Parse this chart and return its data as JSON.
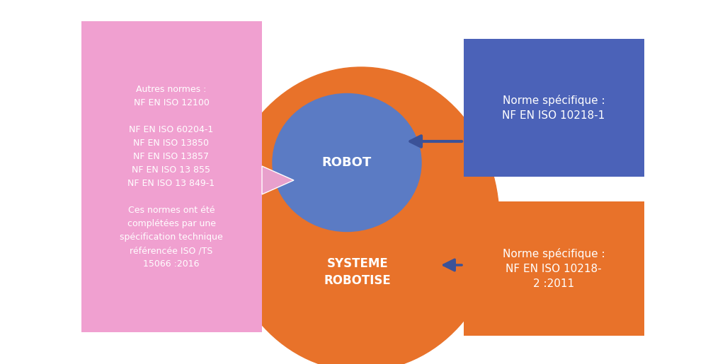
{
  "background_color": "#ffffff",
  "orange_color": "#E8722A",
  "blue_circle_color": "#5B7BC4",
  "pink_box_color": "#F0A0D0",
  "blue_box_color": "#4B62B8",
  "orange_box_color": "#E8722A",
  "arrow_blue_color": "#3B5298",
  "arrow_pink_color": "#E8A0CC",
  "text_white": "#ffffff",
  "pink_box_text": "Autres normes :\nNF EN ISO 12100\n\nNF EN ISO 60204-1\nNF EN ISO 13850\nNF EN ISO 13857\nNF EN ISO 13 855\nNF EN ISO 13 849-1\n\nCes normes ont été\ncomplétées par une\nspécification technique\nréférencée ISO /TS\n15066 :2016",
  "blue_box_text": "Norme spécifique :\nNF EN ISO 10218-1",
  "orange_box_text": "Norme spécifique :\nNF EN ISO 10218-\n2 :2011",
  "robot_label": "ROBOT",
  "systeme_label": "SYSTEME\nROBOTISE",
  "figsize": [
    10.24,
    5.15
  ],
  "dpi": 100
}
